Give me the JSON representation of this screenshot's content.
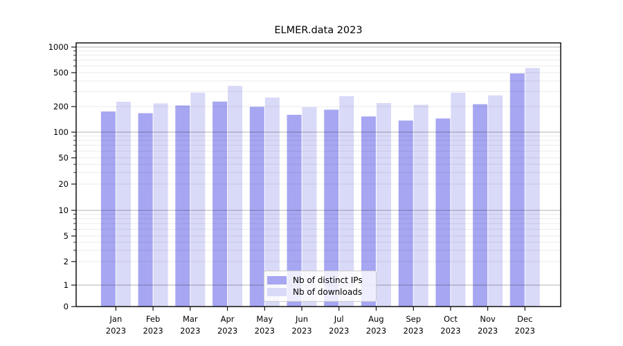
{
  "chart_data": {
    "type": "bar",
    "title": "ELMER.data 2023",
    "categories": [
      "Jan 2023",
      "Feb 2023",
      "Mar 2023",
      "Apr 2023",
      "May 2023",
      "Jun 2023",
      "Jul 2023",
      "Aug 2023",
      "Sep 2023",
      "Oct 2023",
      "Nov 2023",
      "Dec 2023"
    ],
    "series": [
      {
        "name": "Nb of distinct IPs",
        "color": "#a6a6f2",
        "values": [
          175,
          167,
          206,
          229,
          199,
          160,
          184,
          153,
          137,
          145,
          213,
          490
        ]
      },
      {
        "name": "Nb of downloads",
        "color": "#d9d9f8",
        "values": [
          228,
          218,
          292,
          350,
          255,
          197,
          265,
          220,
          210,
          291,
          271,
          567
        ]
      }
    ],
    "xlabel": "",
    "ylabel": "",
    "yscale": "symlog",
    "yticks": [
      0,
      1,
      2,
      5,
      10,
      20,
      50,
      100,
      200,
      500,
      1000
    ],
    "ylim": [
      0,
      1000
    ],
    "grid": "horizontal, drawn over bars; decade lines darker",
    "legend_position": "inside bottom-center"
  }
}
